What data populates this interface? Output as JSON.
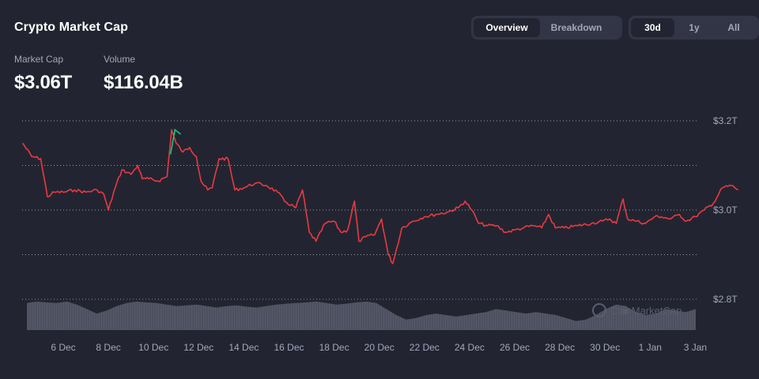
{
  "header": {
    "title": "Crypto Market Cap",
    "view_tabs": [
      "Overview",
      "Breakdown"
    ],
    "active_view": "Overview",
    "range_tabs": [
      "30d",
      "1y",
      "All"
    ],
    "active_range": "30d"
  },
  "stats": {
    "market_cap_label": "Market Cap",
    "market_cap_value": "$3.06T",
    "volume_label": "Volume",
    "volume_value": "$116.04B"
  },
  "watermark": "CoinMarketCap",
  "colors": {
    "background": "#222531",
    "line_down": "#ea3943",
    "line_up": "#16c784",
    "volume": "#5b5f70",
    "grid": "#ffffff"
  },
  "chart_data": {
    "type": "line",
    "title": "",
    "xlabel": "",
    "ylabel": "",
    "x_ticks": [
      "6 Dec",
      "8 Dec",
      "10 Dec",
      "12 Dec",
      "14 Dec",
      "16 Dec",
      "18 Dec",
      "20 Dec",
      "22 Dec",
      "24 Dec",
      "26 Dec",
      "28 Dec",
      "30 Dec",
      "1 Jan",
      "3 Jan"
    ],
    "y_ticks": [
      "$3.2T",
      "$3.0T",
      "$2.8T"
    ],
    "ylim": [
      2.8,
      3.2
    ],
    "y_unit": "T",
    "x_start_day": 4.2,
    "x_end_day": 33.4,
    "grid": true,
    "series": [
      {
        "name": "",
        "points": [
          [
            4.2,
            3.15
          ],
          [
            4.6,
            3.12
          ],
          [
            5.0,
            3.115
          ],
          [
            5.3,
            3.03
          ],
          [
            5.6,
            3.04
          ],
          [
            6.0,
            3.04
          ],
          [
            6.5,
            3.045
          ],
          [
            7.0,
            3.04
          ],
          [
            7.5,
            3.045
          ],
          [
            7.8,
            3.035
          ],
          [
            8.0,
            3.0
          ],
          [
            8.3,
            3.05
          ],
          [
            8.6,
            3.09
          ],
          [
            9.0,
            3.08
          ],
          [
            9.3,
            3.1
          ],
          [
            9.5,
            3.07
          ],
          [
            9.8,
            3.07
          ],
          [
            10.2,
            3.065
          ],
          [
            10.6,
            3.075
          ],
          [
            10.8,
            3.18
          ],
          [
            11.0,
            3.15
          ],
          [
            11.3,
            3.13
          ],
          [
            11.6,
            3.14
          ],
          [
            11.9,
            3.12
          ],
          [
            12.1,
            3.065
          ],
          [
            12.4,
            3.045
          ],
          [
            12.6,
            3.05
          ],
          [
            12.9,
            3.115
          ],
          [
            13.3,
            3.115
          ],
          [
            13.6,
            3.045
          ],
          [
            14.0,
            3.05
          ],
          [
            14.5,
            3.06
          ],
          [
            15.0,
            3.055
          ],
          [
            15.5,
            3.04
          ],
          [
            15.8,
            3.02
          ],
          [
            16.3,
            3.005
          ],
          [
            16.6,
            3.045
          ],
          [
            16.9,
            2.95
          ],
          [
            17.2,
            2.93
          ],
          [
            17.6,
            2.97
          ],
          [
            18.0,
            2.975
          ],
          [
            18.3,
            2.95
          ],
          [
            18.6,
            2.955
          ],
          [
            18.9,
            3.02
          ],
          [
            19.1,
            2.93
          ],
          [
            19.4,
            2.94
          ],
          [
            19.8,
            2.945
          ],
          [
            20.1,
            2.98
          ],
          [
            20.4,
            2.9
          ],
          [
            20.6,
            2.88
          ],
          [
            21.0,
            2.96
          ],
          [
            21.5,
            2.975
          ],
          [
            22.0,
            2.985
          ],
          [
            22.5,
            2.99
          ],
          [
            23.0,
            2.995
          ],
          [
            23.5,
            3.005
          ],
          [
            23.8,
            3.02
          ],
          [
            24.1,
            3.0
          ],
          [
            24.4,
            2.97
          ],
          [
            24.8,
            2.965
          ],
          [
            25.2,
            2.965
          ],
          [
            25.6,
            2.95
          ],
          [
            26.0,
            2.955
          ],
          [
            26.4,
            2.96
          ],
          [
            26.8,
            2.965
          ],
          [
            27.2,
            2.96
          ],
          [
            27.5,
            2.99
          ],
          [
            27.8,
            2.96
          ],
          [
            28.2,
            2.96
          ],
          [
            28.8,
            2.965
          ],
          [
            29.4,
            2.97
          ],
          [
            29.9,
            2.975
          ],
          [
            30.2,
            2.98
          ],
          [
            30.5,
            2.97
          ],
          [
            30.8,
            3.025
          ],
          [
            31.0,
            2.98
          ],
          [
            31.4,
            2.975
          ],
          [
            31.8,
            2.97
          ],
          [
            32.2,
            2.985
          ],
          [
            32.5,
            2.985
          ],
          [
            32.9,
            2.98
          ],
          [
            33.3,
            2.99
          ],
          [
            33.6,
            2.975
          ],
          [
            34.0,
            2.985
          ],
          [
            34.4,
            3.0
          ],
          [
            34.8,
            3.015
          ],
          [
            35.2,
            3.05
          ],
          [
            35.6,
            3.055
          ],
          [
            35.9,
            3.045
          ]
        ]
      }
    ],
    "up_segment": {
      "points": [
        [
          10.75,
          3.125
        ],
        [
          10.95,
          3.18
        ],
        [
          11.2,
          3.17
        ]
      ]
    },
    "volume": {
      "relative_values": [
        0.9,
        0.95,
        0.92,
        0.9,
        0.95,
        0.85,
        0.7,
        0.55,
        0.65,
        0.8,
        0.9,
        0.95,
        0.92,
        0.9,
        0.85,
        0.8,
        0.82,
        0.85,
        0.8,
        0.75,
        0.8,
        0.82,
        0.78,
        0.75,
        0.8,
        0.85,
        0.88,
        0.9,
        0.92,
        0.95,
        0.9,
        0.85,
        0.88,
        0.92,
        0.95,
        0.9,
        0.7,
        0.5,
        0.35,
        0.4,
        0.5,
        0.55,
        0.5,
        0.45,
        0.5,
        0.55,
        0.6,
        0.7,
        0.65,
        0.6,
        0.55,
        0.6,
        0.55,
        0.5,
        0.4,
        0.3,
        0.35,
        0.5,
        0.7,
        0.85,
        0.8,
        0.6,
        0.5,
        0.55,
        0.7,
        0.65,
        0.6,
        0.7
      ]
    }
  }
}
